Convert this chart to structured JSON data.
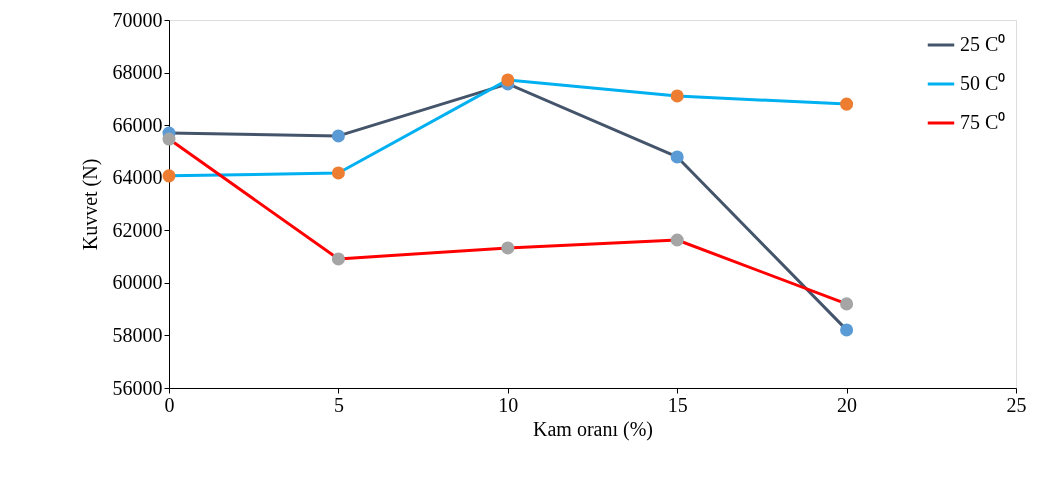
{
  "chart_data": {
    "type": "line",
    "xlabel": "Kam oranı (%)",
    "ylabel": "Kuvvet (N)",
    "x": [
      0,
      5,
      10,
      15,
      20
    ],
    "series": [
      {
        "name": "25 C⁰",
        "color": "#44546a",
        "colors": [
          "#5b9bd5",
          "#5b9bd5",
          "#5b9bd5",
          "#5b9bd5",
          "#5b9bd5"
        ],
        "values": [
          65700,
          65590,
          67570,
          64790,
          58210
        ]
      },
      {
        "name": "50 C⁰",
        "color": "#00b0f0",
        "colors": [
          "#ed7d31",
          "#ed7d31",
          "#ed7d31",
          "#ed7d31",
          "#ed7d31"
        ],
        "values": [
          64070,
          64180,
          67720,
          67110,
          66800
        ]
      },
      {
        "name": "75 C⁰",
        "color": "#ff0000",
        "colors": [
          "#a5a5a5",
          "#a5a5a5",
          "#a5a5a5",
          "#a5a5a5",
          "#a5a5a5"
        ],
        "values": [
          65470,
          60910,
          61330,
          61630,
          59200
        ]
      }
    ],
    "xlim": [
      0,
      25
    ],
    "xticks": [
      0,
      5,
      10,
      15,
      20,
      25
    ],
    "ylim": [
      56000,
      70000
    ],
    "yticks": [
      56000,
      58000,
      60000,
      62000,
      64000,
      66000,
      68000,
      70000
    ],
    "grid": false,
    "legend": "top right",
    "marker": "circle",
    "line_style": "solid"
  }
}
